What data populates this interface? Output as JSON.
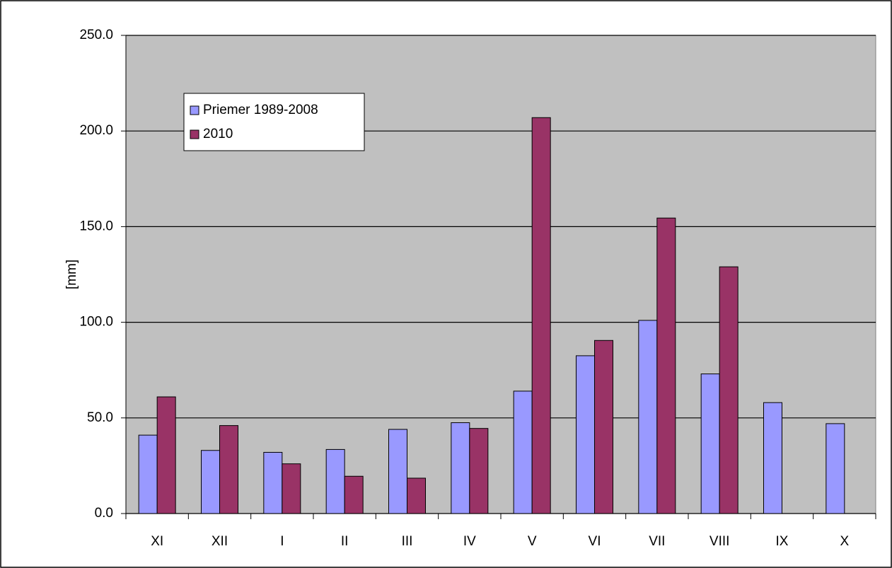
{
  "chart_data": {
    "type": "bar",
    "y_label": "[mm]",
    "categories": [
      "XI",
      "XII",
      "I",
      "II",
      "III",
      "IV",
      "V",
      "VI",
      "VII",
      "VIII",
      "IX",
      "X"
    ],
    "series": [
      {
        "name": "Priemer 1989-2008",
        "color": "#9999ff",
        "values": [
          41,
          33,
          32,
          33.5,
          44,
          47.5,
          64,
          82.5,
          101,
          73,
          58,
          47
        ]
      },
      {
        "name": "2010",
        "color": "#993366",
        "values": [
          61,
          46,
          26,
          19.5,
          18.5,
          44.5,
          207,
          90.5,
          154.5,
          129,
          null,
          null
        ]
      }
    ],
    "ylim": [
      0,
      250
    ],
    "yticks": [
      {
        "value": 0,
        "label": "0.0"
      },
      {
        "value": 50,
        "label": "50.0"
      },
      {
        "value": 100,
        "label": "100.0"
      },
      {
        "value": 150,
        "label": "150.0"
      },
      {
        "value": 200,
        "label": "200.0"
      },
      {
        "value": 250,
        "label": "250.0"
      }
    ],
    "grid": true,
    "background": "#c0c0c0",
    "legend_position": "upper-left"
  }
}
